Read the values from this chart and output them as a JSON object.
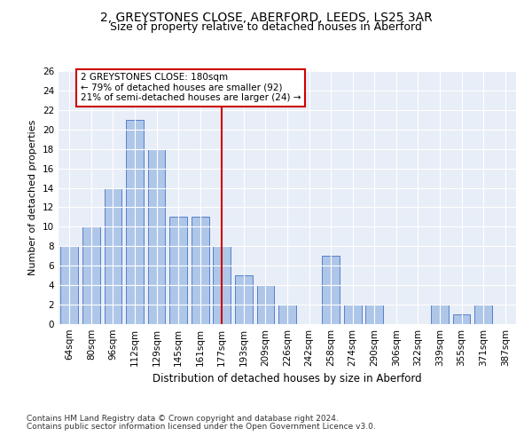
{
  "title1": "2, GREYSTONES CLOSE, ABERFORD, LEEDS, LS25 3AR",
  "title2": "Size of property relative to detached houses in Aberford",
  "xlabel": "Distribution of detached houses by size in Aberford",
  "ylabel": "Number of detached properties",
  "categories": [
    "64sqm",
    "80sqm",
    "96sqm",
    "112sqm",
    "129sqm",
    "145sqm",
    "161sqm",
    "177sqm",
    "193sqm",
    "209sqm",
    "226sqm",
    "242sqm",
    "258sqm",
    "274sqm",
    "290sqm",
    "306sqm",
    "322sqm",
    "339sqm",
    "355sqm",
    "371sqm",
    "387sqm"
  ],
  "values": [
    8,
    10,
    14,
    21,
    18,
    11,
    11,
    8,
    5,
    4,
    2,
    0,
    7,
    2,
    2,
    0,
    0,
    2,
    1,
    2,
    0
  ],
  "bar_color": "#aec6e8",
  "bar_edge_color": "#4472c4",
  "red_line_index": 7,
  "red_line_color": "#cc0000",
  "ylim": [
    0,
    26
  ],
  "yticks": [
    0,
    2,
    4,
    6,
    8,
    10,
    12,
    14,
    16,
    18,
    20,
    22,
    24,
    26
  ],
  "annotation_title": "2 GREYSTONES CLOSE: 180sqm",
  "annotation_line1": "← 79% of detached houses are smaller (92)",
  "annotation_line2": "21% of semi-detached houses are larger (24) →",
  "annotation_box_color": "#ffffff",
  "annotation_box_edge": "#cc0000",
  "footer1": "Contains HM Land Registry data © Crown copyright and database right 2024.",
  "footer2": "Contains public sector information licensed under the Open Government Licence v3.0.",
  "bg_color": "#e8eef7",
  "title1_fontsize": 10,
  "title2_fontsize": 9,
  "xlabel_fontsize": 8.5,
  "ylabel_fontsize": 8,
  "tick_fontsize": 7.5,
  "annotation_fontsize": 7.5,
  "footer_fontsize": 6.5
}
